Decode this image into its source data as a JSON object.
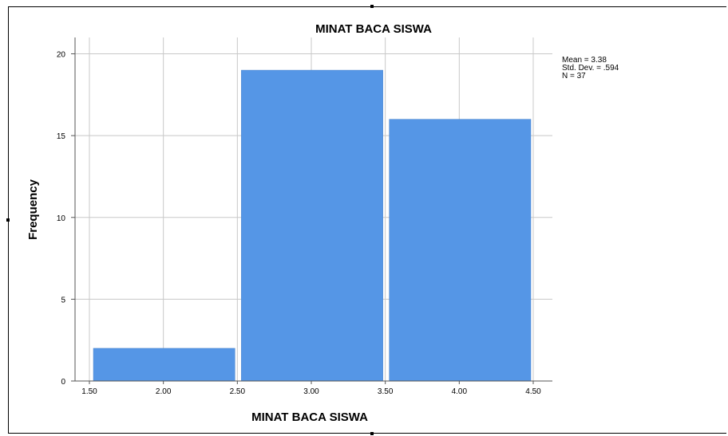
{
  "chart_data": {
    "type": "bar",
    "title": "MINAT BACA SISWA",
    "xlabel": "MINAT BACA SISWA",
    "ylabel": "Frequency",
    "bins": [
      {
        "start": 1.5,
        "end": 2.5,
        "value": 2
      },
      {
        "start": 2.5,
        "end": 3.5,
        "value": 19
      },
      {
        "start": 3.5,
        "end": 4.5,
        "value": 16
      }
    ],
    "xlim": [
      1.5,
      4.5
    ],
    "ylim": [
      0,
      21
    ],
    "x_ticks": [
      "1.50",
      "2.00",
      "2.50",
      "3.00",
      "3.50",
      "4.00",
      "4.50"
    ],
    "y_ticks": [
      "0",
      "5",
      "10",
      "15",
      "20"
    ],
    "grid": true,
    "bar_color": "#5596e6",
    "stats": {
      "mean": "Mean = 3.38",
      "std": "Std. Dev. = .594",
      "n": "N = 37"
    }
  }
}
